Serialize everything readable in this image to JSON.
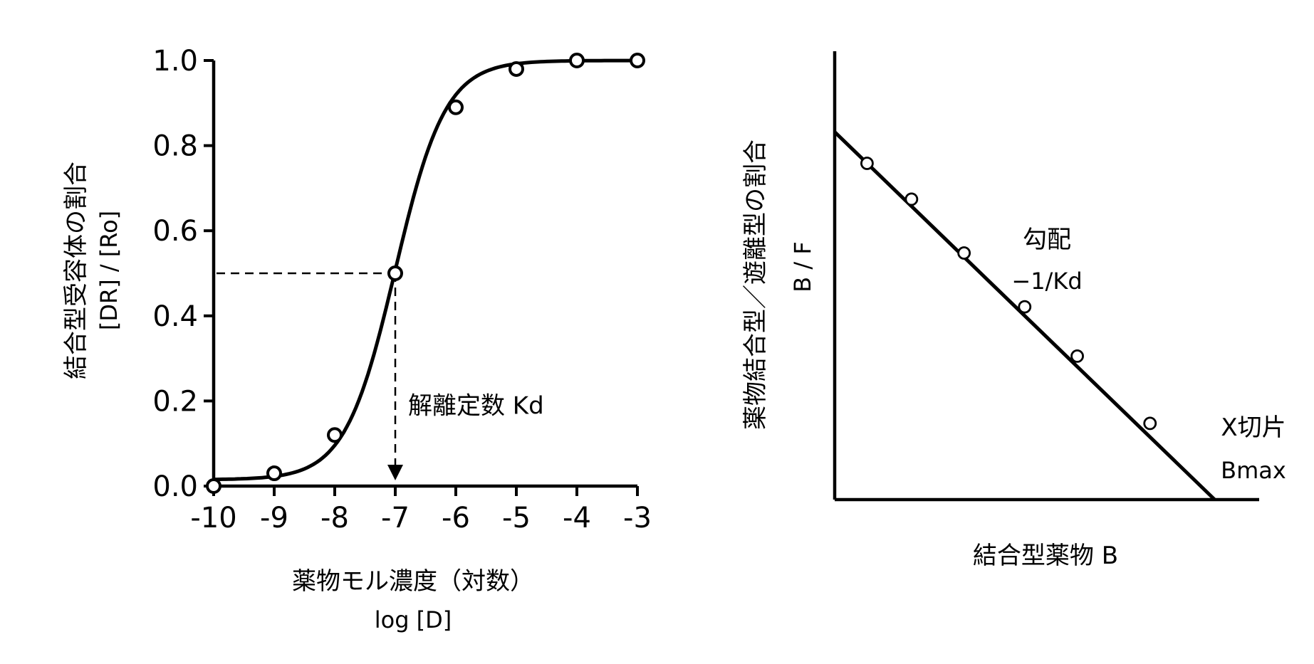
{
  "chart_data": [
    {
      "type": "line",
      "series": [
        {
          "x": [
            -10,
            -9,
            -8,
            -7,
            -6,
            -5,
            -4,
            -3
          ],
          "values": [
            0.0,
            0.03,
            0.12,
            0.5,
            0.89,
            0.98,
            1.0,
            1.0
          ]
        }
      ],
      "xlabel": "薬物モル濃度（対数）",
      "xlabel_sub": "log [D]",
      "ylabel": "結合型受容体の割合",
      "ylabel_sub": "[DR] / [Ro]",
      "xlim": [
        -10,
        -3
      ],
      "ylim": [
        0.0,
        1.0
      ],
      "x_ticks": [
        "-10",
        "-9",
        "-8",
        "-7",
        "-6",
        "-5",
        "-4",
        "-3"
      ],
      "y_ticks": [
        "0.0",
        "0.2",
        "0.4",
        "0.6",
        "0.8",
        "1.0"
      ],
      "annotation": {
        "text": "解離定数 Kd",
        "x": -7,
        "y": 0.5
      },
      "grid": false
    },
    {
      "type": "scatter",
      "series": [
        {
          "x": [
            0.08,
            0.19,
            0.32,
            0.47,
            0.6,
            0.78
          ],
          "values": [
            0.75,
            0.67,
            0.55,
            0.43,
            0.32,
            0.17
          ]
        }
      ],
      "fit_line": {
        "x": [
          0.0,
          0.94
        ],
        "y": [
          0.82,
          0.0
        ]
      },
      "xlabel": "結合型薬物 B",
      "ylabel": "薬物結合型／遊離型の割合",
      "ylabel_sub": "B / F",
      "slope_label": "勾配",
      "slope_value": "−1/Kd",
      "intercept_label": "X切片",
      "intercept_value": "Bmax",
      "xlim": [
        0,
        1.05
      ],
      "ylim": [
        0,
        1.0
      ],
      "grid": false
    }
  ]
}
